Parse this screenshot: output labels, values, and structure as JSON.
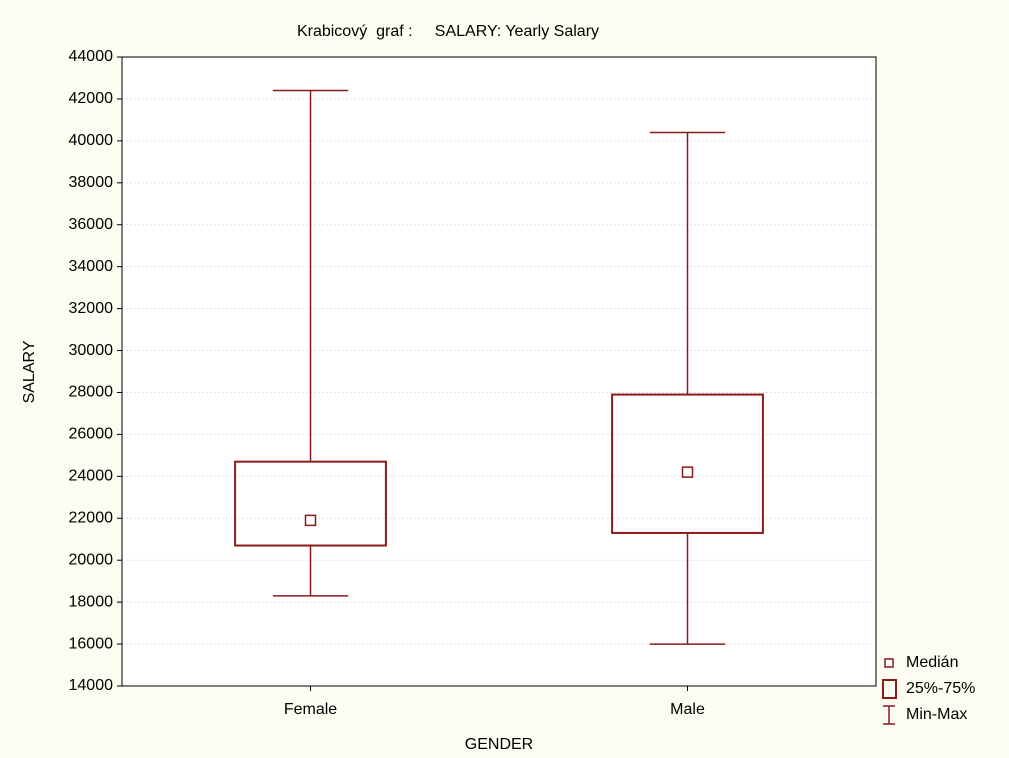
{
  "chart_data": {
    "type": "box",
    "title": "Krabicový  graf :     SALARY: Yearly Salary",
    "x_label": "GENDER",
    "y_label": "SALARY",
    "categories": [
      "Female",
      "Male"
    ],
    "boxes": [
      {
        "min": 18300,
        "q1": 20700,
        "median": 21900,
        "q3": 24700,
        "max": 42400
      },
      {
        "min": 16000,
        "q1": 21300,
        "median": 24200,
        "q3": 27900,
        "max": 40400
      }
    ],
    "color": "#8b1a1a",
    "ylim": [
      14000,
      44000
    ],
    "yticks": [
      14000,
      16000,
      18000,
      20000,
      22000,
      24000,
      26000,
      28000,
      30000,
      32000,
      34000,
      36000,
      38000,
      40000,
      42000,
      44000
    ],
    "grid": true,
    "legend": [
      "Medián",
      "25%-75%",
      "Min-Max"
    ],
    "legend_position": "right"
  }
}
